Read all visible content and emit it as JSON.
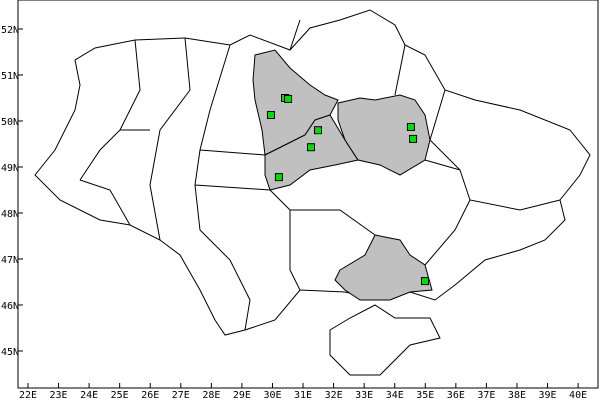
{
  "map": {
    "colors": {
      "background": "#ffffff",
      "border": "#000000",
      "highlight": "#c0c0c0",
      "marker": "#00e000"
    },
    "x_ticks": [
      "22E",
      "23E",
      "24E",
      "25E",
      "26E",
      "27E",
      "28E",
      "29E",
      "30E",
      "31E",
      "32E",
      "33E",
      "34E",
      "35E",
      "36E",
      "37E",
      "38E",
      "39E",
      "40E"
    ],
    "y_ticks": [
      "52N",
      "51N",
      "50N",
      "49N",
      "48N",
      "47N",
      "46N",
      "45N"
    ],
    "highlighted_regions": [
      "Kyiv Oblast",
      "Cherkasy Oblast",
      "Poltava Oblast",
      "Zaporizhzhia Oblast"
    ],
    "markers": [
      {
        "lon": 30.41,
        "lat": 50.5
      },
      {
        "lon": 30.51,
        "lat": 50.48
      },
      {
        "lon": 29.95,
        "lat": 50.13
      },
      {
        "lon": 31.49,
        "lat": 49.8
      },
      {
        "lon": 31.26,
        "lat": 49.43
      },
      {
        "lon": 30.21,
        "lat": 48.78
      },
      {
        "lon": 34.53,
        "lat": 49.87
      },
      {
        "lon": 34.6,
        "lat": 49.61
      },
      {
        "lon": 34.99,
        "lat": 46.52
      }
    ]
  }
}
